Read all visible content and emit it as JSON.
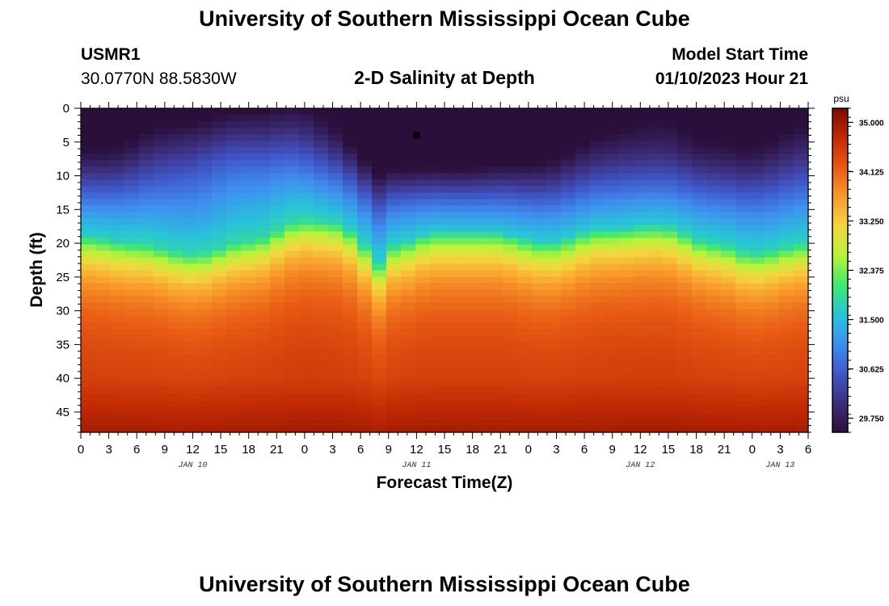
{
  "header": {
    "title": "University of Southern Mississippi Ocean Cube",
    "footer_title": "University of Southern Mississippi Ocean Cube",
    "station": "USMR1",
    "coords": "30.0770N  88.5830W",
    "subtitle": "2-D Salinity at Depth",
    "model_start_label": "Model Start Time",
    "model_start_value": "01/10/2023 Hour 21"
  },
  "chart_data": {
    "type": "heatmap",
    "title": "2-D Salinity at Depth",
    "xlabel": "Forecast Time(Z)",
    "ylabel": "Depth (ft)",
    "x_range_hours": [
      0,
      78
    ],
    "y_range_ft": [
      0,
      48
    ],
    "x_tick_labels": [
      "0",
      "3",
      "6",
      "9",
      "12",
      "15",
      "18",
      "21",
      "0",
      "3",
      "6",
      "9",
      "12",
      "15",
      "18",
      "21",
      "0",
      "3",
      "6",
      "9",
      "12",
      "15",
      "18",
      "21",
      "0",
      "3",
      "6"
    ],
    "y_ticks": [
      0,
      5,
      10,
      15,
      20,
      25,
      30,
      35,
      40,
      45
    ],
    "day_labels": [
      {
        "label": "JAN 10",
        "hour": 12
      },
      {
        "label": "JAN 11",
        "hour": 36
      },
      {
        "label": "JAN 12",
        "hour": 60
      },
      {
        "label": "JAN 13",
        "hour": 75
      }
    ],
    "colorbar": {
      "unit": "psu",
      "min": 29.5,
      "max": 35.25,
      "ticks": [
        35.0,
        34.125,
        33.25,
        32.375,
        31.5,
        30.625,
        29.75
      ],
      "tick_labels": [
        "35.000",
        "34.125",
        "33.250",
        "32.375",
        "31.500",
        "30.625",
        "29.750"
      ],
      "colors": [
        "#2a0f3a",
        "#3d2f7e",
        "#3f58c9",
        "#3f8ff0",
        "#28c4d8",
        "#3fe870",
        "#b9f33a",
        "#f5d540",
        "#f99a2c",
        "#e85a14",
        "#c22a04",
        "#7a0a00"
      ]
    },
    "interface_depth_ft": [
      {
        "hour": 0,
        "depth": 19
      },
      {
        "hour": 6,
        "depth": 20
      },
      {
        "hour": 12,
        "depth": 21.5
      },
      {
        "hour": 18,
        "depth": 19.5
      },
      {
        "hour": 24,
        "depth": 16.5
      },
      {
        "hour": 28,
        "depth": 17
      },
      {
        "hour": 30,
        "depth": 20
      },
      {
        "hour": 32,
        "depth": 23
      },
      {
        "hour": 34,
        "depth": 20
      },
      {
        "hour": 38,
        "depth": 18.5
      },
      {
        "hour": 44,
        "depth": 18.5
      },
      {
        "hour": 50,
        "depth": 20
      },
      {
        "hour": 56,
        "depth": 18
      },
      {
        "hour": 62,
        "depth": 17.5
      },
      {
        "hour": 68,
        "depth": 20
      },
      {
        "hour": 72,
        "depth": 21.5
      },
      {
        "hour": 78,
        "depth": 20
      }
    ],
    "marker": {
      "hour": 36,
      "depth": 4
    }
  }
}
